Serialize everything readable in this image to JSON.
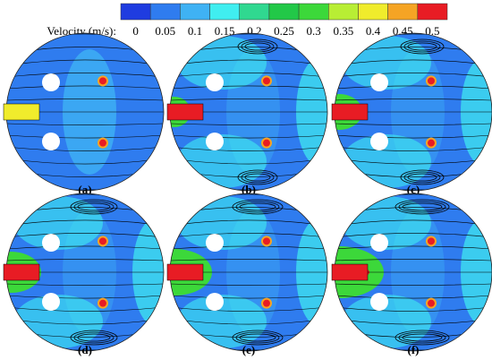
{
  "legend": {
    "title": "Velocity (m/s):",
    "labels": [
      "0",
      "0.05",
      "0.1",
      "0.15",
      "0.2",
      "0.25",
      "0.3",
      "0.35",
      "0.4",
      "0.45",
      "0.5"
    ],
    "colors": [
      "#1f3ce0",
      "#2f7cef",
      "#3fb2f4",
      "#40eef0",
      "#30d890",
      "#22c848",
      "#3cd83a",
      "#b8ee34",
      "#f0ec2c",
      "#f5a424",
      "#ee4c22",
      "#e81c24"
    ]
  },
  "panels": [
    {
      "label": "(a)"
    },
    {
      "label": "(b)"
    },
    {
      "label": "(c)"
    },
    {
      "label": "(d)"
    },
    {
      "label": "(e)"
    },
    {
      "label": "(f)"
    }
  ]
}
